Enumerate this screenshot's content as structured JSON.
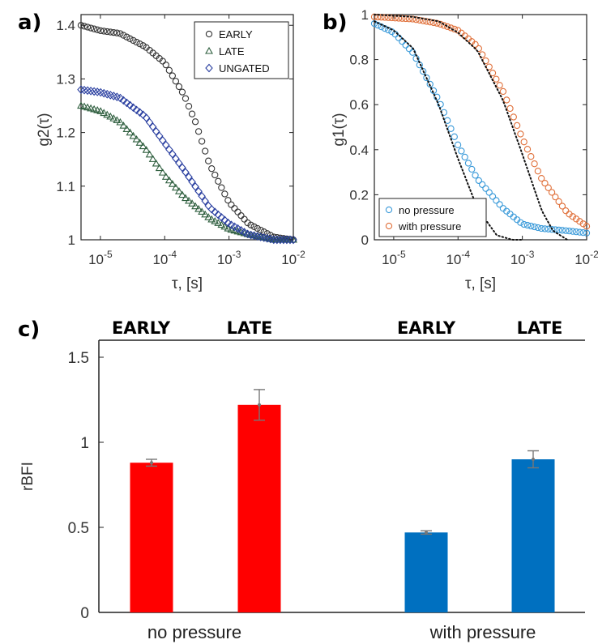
{
  "chart_data": [
    {
      "panel": "a)",
      "type": "scatter",
      "xlabel": "τ, [s]",
      "ylabel": "g2(τ)",
      "xscale": "log",
      "xlim": [
        5e-06,
        0.01
      ],
      "ylim": [
        1.0,
        1.42
      ],
      "xticks": [
        "10-5",
        "10-4",
        "10-3",
        "10-2"
      ],
      "yticks": [
        "1",
        "1.1",
        "1.2",
        "1.3",
        "1.4"
      ],
      "legend_position": "top-right",
      "series": [
        {
          "name": "EARLY",
          "marker": "circle",
          "color": "#333333",
          "x": [
            5e-06,
            1e-05,
            2e-05,
            5e-05,
            0.0001,
            0.0002,
            0.0003,
            0.0005,
            0.001,
            0.002,
            0.005,
            0.01
          ],
          "y": [
            1.4,
            1.39,
            1.385,
            1.36,
            1.33,
            1.27,
            1.22,
            1.14,
            1.07,
            1.03,
            1.005,
            1.0
          ]
        },
        {
          "name": "LATE",
          "marker": "triangle",
          "color": "#2e5e3e",
          "x": [
            5e-06,
            1e-05,
            2e-05,
            5e-05,
            0.0001,
            0.0002,
            0.0005,
            0.001,
            0.002,
            0.005,
            0.01
          ],
          "y": [
            1.25,
            1.24,
            1.22,
            1.17,
            1.12,
            1.08,
            1.04,
            1.02,
            1.01,
            1.0,
            1.0
          ]
        },
        {
          "name": "UNGATED",
          "marker": "diamond",
          "color": "#2a3fa0",
          "x": [
            5e-06,
            1e-05,
            2e-05,
            5e-05,
            0.0001,
            0.0002,
            0.0005,
            0.001,
            0.002,
            0.005,
            0.01
          ],
          "y": [
            1.28,
            1.275,
            1.265,
            1.23,
            1.18,
            1.13,
            1.06,
            1.03,
            1.01,
            1.0,
            1.0
          ]
        }
      ]
    },
    {
      "panel": "b)",
      "type": "scatter",
      "xlabel": "τ, [s]",
      "ylabel": "g1(τ)",
      "xscale": "log",
      "xlim": [
        5e-06,
        0.01
      ],
      "ylim": [
        0,
        1
      ],
      "xticks": [
        "10-5",
        "10-4",
        "10-3",
        "10-2"
      ],
      "yticks": [
        "0",
        "0.2",
        "0.4",
        "0.6",
        "0.8",
        "1"
      ],
      "legend_position": "bottom-left",
      "series": [
        {
          "name": "no pressure",
          "marker": "circle",
          "color": "#3a9ad9",
          "x": [
            5e-06,
            1e-05,
            2e-05,
            5e-05,
            0.0001,
            0.0002,
            0.0005,
            0.001,
            0.002,
            0.005,
            0.01
          ],
          "y": [
            0.96,
            0.92,
            0.83,
            0.62,
            0.42,
            0.27,
            0.14,
            0.07,
            0.05,
            0.04,
            0.03
          ]
        },
        {
          "name": "with pressure",
          "marker": "circle",
          "color": "#e0703a",
          "x": [
            5e-06,
            1e-05,
            2e-05,
            5e-05,
            0.0001,
            0.0002,
            0.0005,
            0.001,
            0.002,
            0.005,
            0.01
          ],
          "y": [
            0.99,
            0.985,
            0.98,
            0.96,
            0.93,
            0.86,
            0.66,
            0.45,
            0.27,
            0.12,
            0.06
          ]
        },
        {
          "name": "",
          "line": "dotted",
          "color": "#111111",
          "x": [
            5e-06,
            1e-05,
            2e-05,
            5e-05,
            0.0001,
            0.0002,
            0.0004,
            0.0007,
            0.001
          ],
          "y": [
            0.97,
            0.93,
            0.85,
            0.6,
            0.36,
            0.14,
            0.02,
            0.0,
            0.0
          ]
        },
        {
          "name": "",
          "line": "dotted",
          "color": "#111111",
          "x": [
            5e-06,
            2e-05,
            5e-05,
            0.0001,
            0.0002,
            0.0005,
            0.001,
            0.002,
            0.003,
            0.005
          ],
          "y": [
            1.0,
            0.99,
            0.97,
            0.92,
            0.84,
            0.62,
            0.38,
            0.13,
            0.04,
            0.0
          ]
        }
      ]
    },
    {
      "panel": "c)",
      "type": "bar",
      "ylabel": "rBFI",
      "ylim": [
        0,
        1.6
      ],
      "yticks": [
        "0",
        "0.5",
        "1",
        "1.5"
      ],
      "group_labels": [
        "no pressure",
        "with pressure"
      ],
      "top_labels": [
        "EARLY",
        "LATE",
        "EARLY",
        "LATE"
      ],
      "bars": [
        {
          "group": "no pressure",
          "label": "EARLY",
          "value": 0.88,
          "error": 0.02,
          "color": "#ff0000"
        },
        {
          "group": "no pressure",
          "label": "LATE",
          "value": 1.22,
          "error": 0.09,
          "color": "#ff0000"
        },
        {
          "group": "with pressure",
          "label": "EARLY",
          "value": 0.47,
          "error": 0.01,
          "color": "#0070c0"
        },
        {
          "group": "with pressure",
          "label": "LATE",
          "value": 0.9,
          "error": 0.05,
          "color": "#0070c0"
        }
      ]
    }
  ]
}
